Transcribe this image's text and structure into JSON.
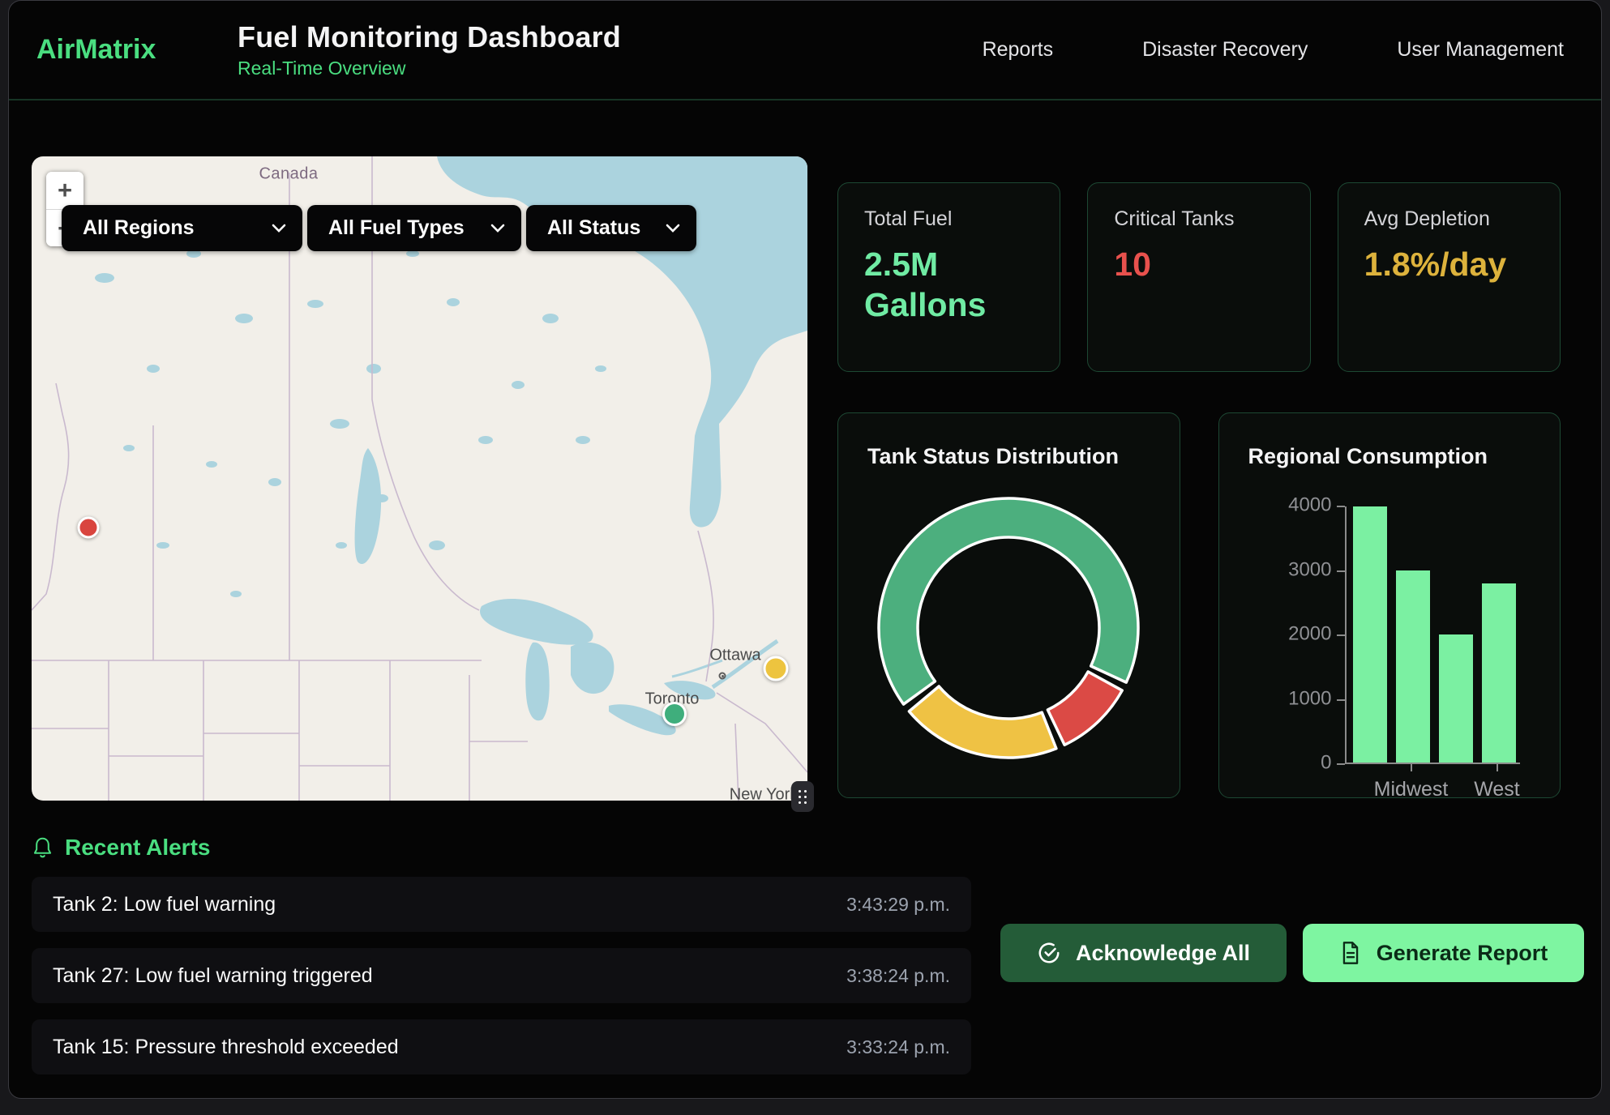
{
  "header": {
    "brand": "AirMatrix",
    "title": "Fuel Monitoring Dashboard",
    "subtitle": "Real-Time Overview",
    "nav": [
      {
        "label": "Reports"
      },
      {
        "label": "Disaster Recovery"
      },
      {
        "label": "User Management"
      }
    ]
  },
  "map": {
    "country_label": "Canada",
    "city_labels": {
      "ottawa": "Ottawa",
      "toronto": "Toronto",
      "new_york": "New York"
    },
    "zoom_in": "+",
    "zoom_out": "−",
    "filters": [
      {
        "label": "All Regions"
      },
      {
        "label": "All Fuel Types"
      },
      {
        "label": "All Status"
      }
    ],
    "markers": [
      {
        "name": "critical-tank-marker",
        "color": "#d9453f"
      },
      {
        "name": "warning-tank-marker",
        "color": "#edc43f"
      },
      {
        "name": "normal-tank-marker",
        "color": "#3fae7c"
      }
    ]
  },
  "stats": [
    {
      "label": "Total Fuel",
      "value": "2.5M Gallons",
      "color": "#70eba4"
    },
    {
      "label": "Critical Tanks",
      "value": "10",
      "color": "#e8514d"
    },
    {
      "label": "Avg Depletion",
      "value": "1.8%/day",
      "color": "#ddb23c"
    }
  ],
  "chart_data": [
    {
      "type": "pie",
      "subtype": "donut",
      "title": "Tank Status Distribution",
      "segments": [
        {
          "color": "#4caf7e",
          "value": 68
        },
        {
          "color": "#db4a45",
          "value": 11
        },
        {
          "color": "#efc244",
          "value": 21
        }
      ],
      "start_angle_deg": 232,
      "legend": "none"
    },
    {
      "type": "bar",
      "title": "Regional Consumption",
      "values": [
        4000,
        3000,
        2000,
        2800
      ],
      "x_tick_labels": [
        "",
        "Midwest",
        "",
        "West"
      ],
      "y_ticks": [
        0,
        1000,
        2000,
        3000,
        4000
      ],
      "ylim": [
        0,
        4000
      ],
      "bar_color": "#7bf0a2",
      "legend": "none",
      "grid": "off"
    }
  ],
  "alerts": {
    "heading": "Recent Alerts",
    "items": [
      {
        "message": "Tank 2: Low fuel warning",
        "time": "3:43:29 p.m."
      },
      {
        "message": "Tank 27: Low fuel warning triggered",
        "time": "3:38:24 p.m."
      },
      {
        "message": "Tank 15: Pressure threshold exceeded",
        "time": "3:33:24 p.m."
      }
    ]
  },
  "actions": {
    "acknowledge_all": "Acknowledge All",
    "generate_report": "Generate Report"
  }
}
